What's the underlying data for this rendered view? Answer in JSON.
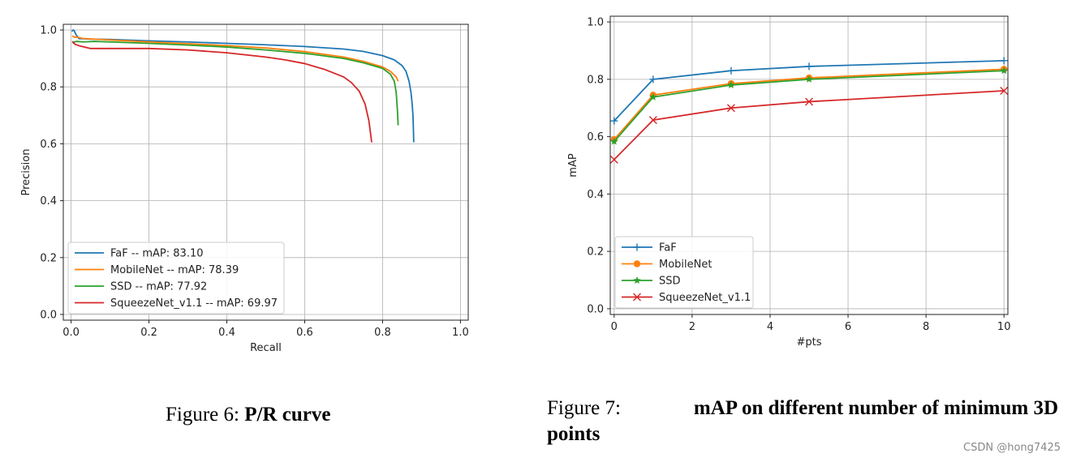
{
  "captions": {
    "fig6_prefix": "Figure 6:",
    "fig6_title": "P/R curve",
    "fig7_prefix": "Figure 7:",
    "fig7_title_line1": "mAP on different number of minimum 3D",
    "fig7_title_line2": "points"
  },
  "watermark": "CSDN @hong7425",
  "chart_data": [
    {
      "type": "line",
      "title": "",
      "xlabel": "Recall",
      "ylabel": "Precision",
      "xlim": [
        -0.02,
        1.02
      ],
      "ylim": [
        -0.02,
        1.02
      ],
      "xticks": [
        0.0,
        0.2,
        0.4,
        0.6,
        0.8,
        1.0
      ],
      "yticks": [
        0.0,
        0.2,
        0.4,
        0.6,
        0.8,
        1.0
      ],
      "tick_labels_x": [
        "0.0",
        "0.2",
        "0.4",
        "0.6",
        "0.8",
        "1.0"
      ],
      "tick_labels_y": [
        "0.0",
        "0.2",
        "0.4",
        "0.6",
        "0.8",
        "1.0"
      ],
      "grid": true,
      "legend_position": "lower-left",
      "series": [
        {
          "name": "FaF -- mAP: 83.10",
          "color": "#1f77b4",
          "x": [
            0.002,
            0.005,
            0.008,
            0.012,
            0.02,
            0.05,
            0.1,
            0.2,
            0.3,
            0.4,
            0.5,
            0.6,
            0.7,
            0.75,
            0.8,
            0.83,
            0.85,
            0.86,
            0.868,
            0.873,
            0.876,
            0.878,
            0.879,
            0.88
          ],
          "y": [
            0.995,
            1.0,
            0.998,
            0.985,
            0.97,
            0.968,
            0.967,
            0.962,
            0.958,
            0.953,
            0.948,
            0.942,
            0.933,
            0.925,
            0.91,
            0.895,
            0.875,
            0.855,
            0.82,
            0.78,
            0.74,
            0.7,
            0.66,
            0.605
          ]
        },
        {
          "name": "MobileNet -- mAP: 78.39",
          "color": "#ff7f0e",
          "x": [
            0.003,
            0.008,
            0.015,
            0.03,
            0.06,
            0.1,
            0.2,
            0.3,
            0.4,
            0.5,
            0.6,
            0.7,
            0.75,
            0.8,
            0.82,
            0.835,
            0.84
          ],
          "y": [
            0.98,
            0.975,
            0.975,
            0.97,
            0.968,
            0.965,
            0.958,
            0.952,
            0.945,
            0.937,
            0.924,
            0.905,
            0.89,
            0.87,
            0.855,
            0.835,
            0.82
          ]
        },
        {
          "name": "SSD -- mAP: 77.92",
          "color": "#2ca02c",
          "x": [
            0.003,
            0.008,
            0.015,
            0.03,
            0.06,
            0.1,
            0.2,
            0.3,
            0.4,
            0.5,
            0.6,
            0.7,
            0.75,
            0.8,
            0.82,
            0.83,
            0.835,
            0.838,
            0.84
          ],
          "y": [
            0.955,
            0.958,
            0.96,
            0.958,
            0.96,
            0.958,
            0.953,
            0.947,
            0.94,
            0.93,
            0.918,
            0.9,
            0.885,
            0.865,
            0.845,
            0.82,
            0.78,
            0.72,
            0.665
          ]
        },
        {
          "name": "SqueezeNet_v1.1 -- mAP: 69.97",
          "color": "#d62728",
          "x": [
            0.003,
            0.01,
            0.02,
            0.05,
            0.1,
            0.2,
            0.3,
            0.4,
            0.5,
            0.55,
            0.6,
            0.65,
            0.7,
            0.72,
            0.74,
            0.755,
            0.765,
            0.772
          ],
          "y": [
            0.96,
            0.95,
            0.945,
            0.935,
            0.935,
            0.935,
            0.93,
            0.92,
            0.905,
            0.895,
            0.882,
            0.862,
            0.835,
            0.815,
            0.785,
            0.74,
            0.68,
            0.605
          ]
        }
      ]
    },
    {
      "type": "line",
      "title": "",
      "xlabel": "#pts",
      "ylabel": "mAP",
      "xlim": [
        -0.1,
        10.1
      ],
      "ylim": [
        -0.02,
        1.02
      ],
      "xticks": [
        0,
        2,
        4,
        6,
        8,
        10
      ],
      "yticks": [
        0.0,
        0.2,
        0.4,
        0.6,
        0.8,
        1.0
      ],
      "tick_labels_x": [
        "0",
        "2",
        "4",
        "6",
        "8",
        "10"
      ],
      "tick_labels_y": [
        "0.0",
        "0.2",
        "0.4",
        "0.6",
        "0.8",
        "1.0"
      ],
      "grid": true,
      "legend_position": "lower-left",
      "series": [
        {
          "name": "FaF",
          "color": "#1f77b4",
          "marker": "plus",
          "x": [
            0,
            1,
            3,
            5,
            10
          ],
          "y": [
            0.655,
            0.8,
            0.83,
            0.845,
            0.865
          ]
        },
        {
          "name": "MobileNet",
          "color": "#ff7f0e",
          "marker": "circle",
          "x": [
            0,
            1,
            3,
            5,
            10
          ],
          "y": [
            0.59,
            0.745,
            0.785,
            0.805,
            0.835
          ]
        },
        {
          "name": "SSD",
          "color": "#2ca02c",
          "marker": "star",
          "x": [
            0,
            1,
            3,
            5,
            10
          ],
          "y": [
            0.583,
            0.738,
            0.78,
            0.8,
            0.83
          ]
        },
        {
          "name": "SqueezeNet_v1.1",
          "color": "#d62728",
          "marker": "x",
          "x": [
            0,
            1,
            3,
            5,
            10
          ],
          "y": [
            0.52,
            0.658,
            0.7,
            0.722,
            0.76
          ]
        }
      ]
    }
  ]
}
